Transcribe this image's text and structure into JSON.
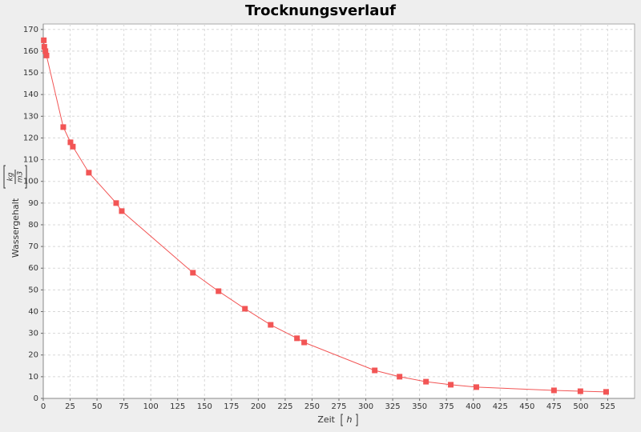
{
  "chart_data": {
    "type": "line",
    "title": "Trocknungsverlauf",
    "x_label": "Zeit",
    "x_unit": "h",
    "y_label": "Wassergehalt",
    "y_unit": {
      "numerator": "kg",
      "denominator": "m3"
    },
    "x": [
      0.5,
      1,
      2,
      3,
      18.6,
      25.3,
      27.5,
      42.4,
      67.8,
      73,
      139.2,
      163,
      187.6,
      211.5,
      236,
      242.7,
      308.3,
      331.4,
      356,
      379,
      402.8,
      475,
      499.6,
      523.5
    ],
    "series": [
      {
        "color": "#f25555",
        "values": [
          165,
          162,
          160,
          158,
          125,
          118,
          116,
          104,
          90,
          86.3,
          57.9,
          49.4,
          41.3,
          33.9,
          27.7,
          25.8,
          12.9,
          10,
          7.7,
          6.3,
          5.2,
          3.7,
          3.3,
          3
        ]
      }
    ],
    "xlim": [
      0,
      550
    ],
    "ylim": [
      0,
      172.5
    ],
    "xticks": [
      0,
      25,
      50,
      75,
      100,
      125,
      150,
      175,
      200,
      225,
      250,
      275,
      300,
      325,
      350,
      375,
      400,
      425,
      450,
      475,
      500,
      525
    ],
    "yticks": [
      0,
      10,
      20,
      30,
      40,
      50,
      60,
      70,
      80,
      90,
      100,
      110,
      120,
      130,
      140,
      150,
      160,
      170
    ],
    "grid": true,
    "markers": "square"
  }
}
